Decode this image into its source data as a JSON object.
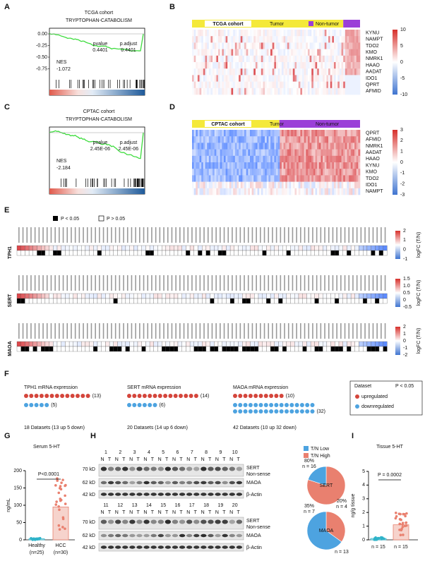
{
  "A": {
    "letter": "A",
    "cohort": "TCGA cohort",
    "pathway": "TRYPTOPHAN-CATABOLISM",
    "pvalue_label": "pvalue",
    "pvalue": "0.4401",
    "padj_label": "p.adjust",
    "padj": "0.4401",
    "nes_label": "NES",
    "nes": "-1.072",
    "yticks": [
      "0.00",
      "-0.25",
      "-0.50",
      "-0.75"
    ]
  },
  "B": {
    "letter": "B",
    "cohort": "TCGA cohort",
    "legend": [
      "Tumor",
      "Non-tumor"
    ],
    "genes": [
      "KYNU",
      "NAMPT",
      "TDO2",
      "KMO",
      "NMRK1",
      "HAAO",
      "AADAT",
      "IDO1",
      "QPRT",
      "AFMID"
    ],
    "colorbar": [
      "10",
      "5",
      "0",
      "-5",
      "-10"
    ]
  },
  "C": {
    "letter": "C",
    "cohort": "CPTAC cohort",
    "pathway": "TRYPTOPHAN-CATABOLISM",
    "pvalue_label": "pvalue",
    "pvalue": "2.45E-06",
    "padj_label": "p.adjust",
    "padj": "2.45E-06",
    "nes_label": "NES",
    "nes": "-2.184"
  },
  "D": {
    "letter": "D",
    "cohort": "CPTAC cohort",
    "legend": [
      "Tumor",
      "Non-tumor"
    ],
    "genes": [
      "QPRT",
      "AFMID",
      "NMRK1",
      "AADAT",
      "HAAO",
      "KYNU",
      "KMO",
      "TDO2",
      "IDO1",
      "NAMPT"
    ],
    "colorbar": [
      "3",
      "2",
      "1",
      "0",
      "-1",
      "-2",
      "-3"
    ]
  },
  "E": {
    "letter": "E",
    "legend": [
      "P < 0.05",
      "P > 0.05"
    ],
    "colorbar_title": "logFC (T/N)",
    "rows": [
      {
        "gene": "TPH1",
        "colorbar": [
          "2",
          "1",
          "0",
          "-1"
        ]
      },
      {
        "gene": "SERT",
        "colorbar": [
          "1.5",
          "1.0",
          "0.5",
          "0",
          "-0.5"
        ]
      },
      {
        "gene": "MAOA",
        "colorbar": [
          "2",
          "1",
          "0",
          "-1",
          "-2"
        ]
      }
    ]
  },
  "F": {
    "letter": "F",
    "groups": [
      {
        "title": "TPH1 mRNA expression",
        "up": 13,
        "down": 5,
        "up_label": "(13)",
        "down_label": "(5)",
        "summary": "18 Datasets (13 up  5 down)"
      },
      {
        "title": "SERT mRNA expression",
        "up": 14,
        "down": 6,
        "up_label": "(14)",
        "down_label": "(6)",
        "summary": "20 Datasets (14 up  6 down)"
      },
      {
        "title": "MAOA mRNA expression",
        "up": 10,
        "down": 32,
        "up_label": "(10)",
        "down_label": "(32)",
        "summary": "42 Datasets (10 up  32 down)"
      }
    ],
    "legend_title": "Dataset",
    "legend_p": "P < 0.05",
    "legend": [
      "upregulated",
      "downregulated"
    ]
  },
  "G": {
    "letter": "G",
    "title": "Serum 5-HT",
    "p": "P<0.0001",
    "ylabel": "ng/mL",
    "ylim": [
      0,
      200
    ],
    "yticks": [
      0,
      50,
      100,
      150,
      200
    ],
    "groups": [
      "Healthy",
      "HCC"
    ],
    "n": [
      "(n=25)",
      "(n=30)"
    ],
    "values": [
      3,
      95
    ]
  },
  "H": {
    "letter": "H",
    "lanes": [
      1,
      2,
      3,
      4,
      5,
      6,
      7,
      8,
      9,
      10,
      11,
      12,
      13,
      14,
      15,
      16,
      17,
      18,
      19,
      20
    ],
    "nt": [
      "N",
      "T"
    ],
    "markers": [
      "70 kD",
      "62 kD",
      "42 kD"
    ],
    "bands": [
      "SERT",
      "Non-sense",
      "MAOA",
      "β-Actin"
    ],
    "legend": [
      "T/N Low",
      "T/N High"
    ],
    "pies": [
      {
        "name": "SERT",
        "values": [
          80,
          20
        ],
        "value_labels": [
          "80%",
          "20%"
        ],
        "n": [
          "n = 16",
          "n = 4"
        ]
      },
      {
        "name": "MAOA",
        "values": [
          35,
          65
        ],
        "value_labels": [
          "35%",
          null
        ],
        "n": [
          "n = 7",
          "n = 13"
        ]
      }
    ]
  },
  "I": {
    "letter": "I",
    "title": "Tissue 5-HT",
    "p": "P = 0.0002",
    "ylabel": "ng/g tissue",
    "ylim": [
      0,
      5
    ],
    "yticks": [
      0,
      1,
      2,
      3,
      4,
      5
    ],
    "n": [
      "n = 15",
      "n = 15"
    ],
    "values": [
      0.1,
      1.1
    ]
  }
}
